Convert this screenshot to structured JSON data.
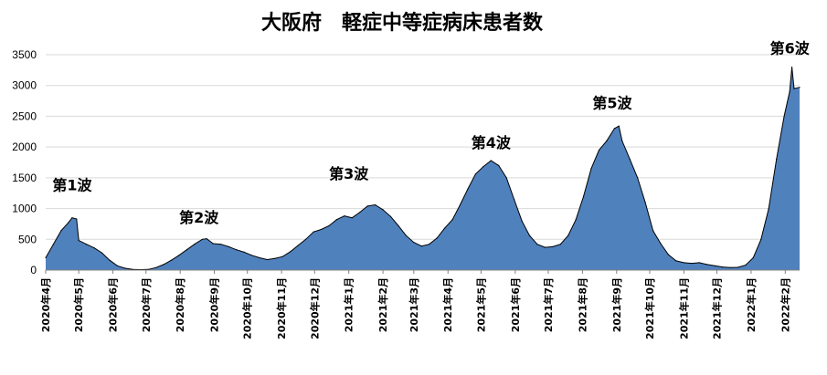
{
  "chart_data": {
    "type": "area",
    "title": "大阪府　軽症中等症病床患者数",
    "ylim": [
      0,
      3500
    ],
    "yticks": [
      0,
      500,
      1000,
      1500,
      2000,
      2500,
      3000,
      3500
    ],
    "grid": true,
    "legend": "none",
    "colors": {
      "fill": "#4f81bd",
      "line": "#000000",
      "grid": "#d9d9d9"
    },
    "x_ticks": [
      {
        "label": "2020年4月",
        "x": "2020-04-01"
      },
      {
        "label": "2020年5月",
        "x": "2020-05-01"
      },
      {
        "label": "2020年6月",
        "x": "2020-06-01"
      },
      {
        "label": "2020年7月",
        "x": "2020-07-01"
      },
      {
        "label": "2020年8月",
        "x": "2020-08-01"
      },
      {
        "label": "2020年9月",
        "x": "2020-09-01"
      },
      {
        "label": "2020年10月",
        "x": "2020-10-01"
      },
      {
        "label": "2020年11月",
        "x": "2020-11-01"
      },
      {
        "label": "2020年12月",
        "x": "2020-12-01"
      },
      {
        "label": "2021年1月",
        "x": "2021-01-01"
      },
      {
        "label": "2021年2月",
        "x": "2021-02-01"
      },
      {
        "label": "2021年3月",
        "x": "2021-03-01"
      },
      {
        "label": "2021年4月",
        "x": "2021-04-01"
      },
      {
        "label": "2021年5月",
        "x": "2021-05-01"
      },
      {
        "label": "2021年6月",
        "x": "2021-06-01"
      },
      {
        "label": "2021年7月",
        "x": "2021-07-01"
      },
      {
        "label": "2021年8月",
        "x": "2021-08-01"
      },
      {
        "label": "2021年9月",
        "x": "2021-09-01"
      },
      {
        "label": "2021年10月",
        "x": "2021-10-01"
      },
      {
        "label": "2021年11月",
        "x": "2021-11-01"
      },
      {
        "label": "2021年12月",
        "x": "2021-12-01"
      },
      {
        "label": "2022年1月",
        "x": "2022-01-01"
      },
      {
        "label": "2022年2月",
        "x": "2022-02-01"
      }
    ],
    "series": [
      {
        "points": [
          [
            "2020-04-01",
            200
          ],
          [
            "2020-04-08",
            420
          ],
          [
            "2020-04-15",
            640
          ],
          [
            "2020-04-22",
            780
          ],
          [
            "2020-04-25",
            850
          ],
          [
            "2020-04-29",
            830
          ],
          [
            "2020-05-01",
            480
          ],
          [
            "2020-05-08",
            420
          ],
          [
            "2020-05-15",
            360
          ],
          [
            "2020-05-22",
            280
          ],
          [
            "2020-05-29",
            160
          ],
          [
            "2020-06-05",
            70
          ],
          [
            "2020-06-12",
            30
          ],
          [
            "2020-06-19",
            12
          ],
          [
            "2020-06-26",
            8
          ],
          [
            "2020-07-03",
            10
          ],
          [
            "2020-07-10",
            40
          ],
          [
            "2020-07-17",
            90
          ],
          [
            "2020-07-24",
            160
          ],
          [
            "2020-07-31",
            240
          ],
          [
            "2020-08-07",
            330
          ],
          [
            "2020-08-14",
            420
          ],
          [
            "2020-08-21",
            500
          ],
          [
            "2020-08-25",
            510
          ],
          [
            "2020-08-31",
            430
          ],
          [
            "2020-09-07",
            420
          ],
          [
            "2020-09-14",
            380
          ],
          [
            "2020-09-21",
            330
          ],
          [
            "2020-09-28",
            290
          ],
          [
            "2020-10-05",
            240
          ],
          [
            "2020-10-12",
            200
          ],
          [
            "2020-10-19",
            170
          ],
          [
            "2020-10-26",
            190
          ],
          [
            "2020-11-02",
            220
          ],
          [
            "2020-11-09",
            300
          ],
          [
            "2020-11-16",
            400
          ],
          [
            "2020-11-23",
            500
          ],
          [
            "2020-11-30",
            620
          ],
          [
            "2020-12-07",
            660
          ],
          [
            "2020-12-14",
            720
          ],
          [
            "2020-12-21",
            820
          ],
          [
            "2020-12-28",
            880
          ],
          [
            "2021-01-04",
            850
          ],
          [
            "2021-01-11",
            940
          ],
          [
            "2021-01-18",
            1040
          ],
          [
            "2021-01-25",
            1060
          ],
          [
            "2021-02-01",
            980
          ],
          [
            "2021-02-08",
            870
          ],
          [
            "2021-02-15",
            720
          ],
          [
            "2021-02-22",
            560
          ],
          [
            "2021-03-01",
            450
          ],
          [
            "2021-03-08",
            390
          ],
          [
            "2021-03-15",
            420
          ],
          [
            "2021-03-22",
            520
          ],
          [
            "2021-03-29",
            680
          ],
          [
            "2021-04-05",
            820
          ],
          [
            "2021-04-12",
            1060
          ],
          [
            "2021-04-19",
            1320
          ],
          [
            "2021-04-26",
            1560
          ],
          [
            "2021-05-03",
            1680
          ],
          [
            "2021-05-10",
            1780
          ],
          [
            "2021-05-17",
            1700
          ],
          [
            "2021-05-24",
            1500
          ],
          [
            "2021-05-31",
            1150
          ],
          [
            "2021-06-07",
            800
          ],
          [
            "2021-06-14",
            560
          ],
          [
            "2021-06-21",
            420
          ],
          [
            "2021-06-28",
            370
          ],
          [
            "2021-07-05",
            380
          ],
          [
            "2021-07-12",
            420
          ],
          [
            "2021-07-19",
            560
          ],
          [
            "2021-07-26",
            820
          ],
          [
            "2021-08-02",
            1200
          ],
          [
            "2021-08-09",
            1650
          ],
          [
            "2021-08-16",
            1950
          ],
          [
            "2021-08-23",
            2100
          ],
          [
            "2021-08-30",
            2300
          ],
          [
            "2021-09-03",
            2340
          ],
          [
            "2021-09-06",
            2100
          ],
          [
            "2021-09-13",
            1800
          ],
          [
            "2021-09-20",
            1500
          ],
          [
            "2021-09-27",
            1100
          ],
          [
            "2021-10-04",
            640
          ],
          [
            "2021-10-11",
            430
          ],
          [
            "2021-10-18",
            250
          ],
          [
            "2021-10-25",
            150
          ],
          [
            "2021-11-01",
            120
          ],
          [
            "2021-11-08",
            110
          ],
          [
            "2021-11-15",
            120
          ],
          [
            "2021-11-22",
            90
          ],
          [
            "2021-11-29",
            70
          ],
          [
            "2021-12-06",
            50
          ],
          [
            "2021-12-13",
            40
          ],
          [
            "2021-12-20",
            45
          ],
          [
            "2021-12-27",
            80
          ],
          [
            "2022-01-03",
            200
          ],
          [
            "2022-01-10",
            500
          ],
          [
            "2022-01-17",
            1000
          ],
          [
            "2022-01-24",
            1800
          ],
          [
            "2022-01-31",
            2500
          ],
          [
            "2022-02-05",
            2900
          ],
          [
            "2022-02-07",
            3300
          ],
          [
            "2022-02-09",
            2950
          ],
          [
            "2022-02-14",
            2970
          ]
        ]
      }
    ],
    "annotations": [
      {
        "text": "第1波",
        "x": "2020-04-25",
        "y": 1300
      },
      {
        "text": "第2波",
        "x": "2020-08-18",
        "y": 770
      },
      {
        "text": "第3波",
        "x": "2021-01-01",
        "y": 1480
      },
      {
        "text": "第4波",
        "x": "2021-05-10",
        "y": 1990
      },
      {
        "text": "第5波",
        "x": "2021-08-28",
        "y": 2630
      },
      {
        "text": "第6波",
        "x": "2022-02-05",
        "y": 3520
      }
    ]
  }
}
